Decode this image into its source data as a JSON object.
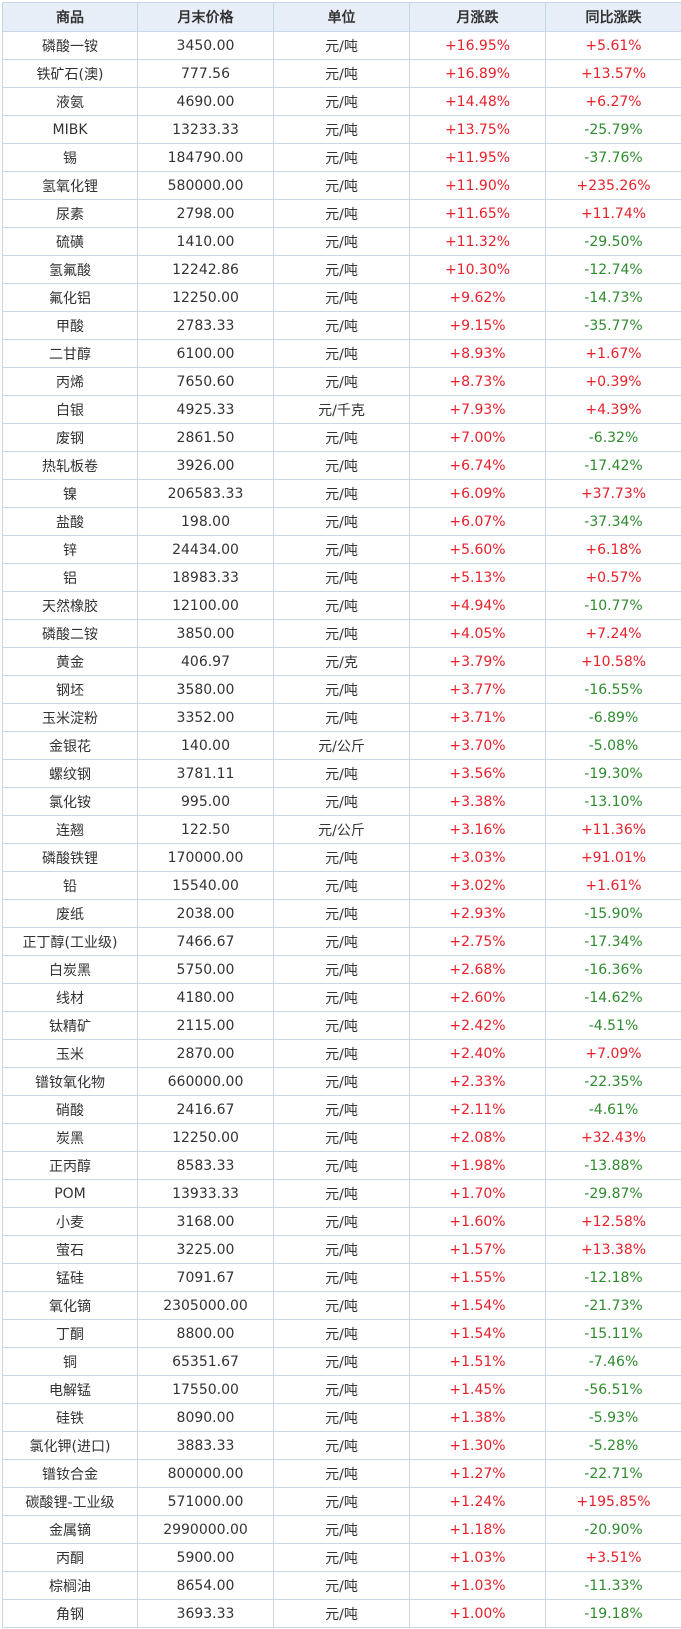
{
  "table": {
    "headers": [
      "商品",
      "月末价格",
      "单位",
      "月涨跌",
      "同比涨跌"
    ],
    "rows": [
      [
        "磷酸一铵",
        "3450.00",
        "元/吨",
        "+16.95%",
        "+5.61%"
      ],
      [
        "铁矿石(澳)",
        "777.56",
        "元/吨",
        "+16.89%",
        "+13.57%"
      ],
      [
        "液氨",
        "4690.00",
        "元/吨",
        "+14.48%",
        "+6.27%"
      ],
      [
        "MIBK",
        "13233.33",
        "元/吨",
        "+13.75%",
        "-25.79%"
      ],
      [
        "锡",
        "184790.00",
        "元/吨",
        "+11.95%",
        "-37.76%"
      ],
      [
        "氢氧化锂",
        "580000.00",
        "元/吨",
        "+11.90%",
        "+235.26%"
      ],
      [
        "尿素",
        "2798.00",
        "元/吨",
        "+11.65%",
        "+11.74%"
      ],
      [
        "硫磺",
        "1410.00",
        "元/吨",
        "+11.32%",
        "-29.50%"
      ],
      [
        "氢氟酸",
        "12242.86",
        "元/吨",
        "+10.30%",
        "-12.74%"
      ],
      [
        "氟化铝",
        "12250.00",
        "元/吨",
        "+9.62%",
        "-14.73%"
      ],
      [
        "甲酸",
        "2783.33",
        "元/吨",
        "+9.15%",
        "-35.77%"
      ],
      [
        "二甘醇",
        "6100.00",
        "元/吨",
        "+8.93%",
        "+1.67%"
      ],
      [
        "丙烯",
        "7650.60",
        "元/吨",
        "+8.73%",
        "+0.39%"
      ],
      [
        "白银",
        "4925.33",
        "元/千克",
        "+7.93%",
        "+4.39%"
      ],
      [
        "废钢",
        "2861.50",
        "元/吨",
        "+7.00%",
        "-6.32%"
      ],
      [
        "热轧板卷",
        "3926.00",
        "元/吨",
        "+6.74%",
        "-17.42%"
      ],
      [
        "镍",
        "206583.33",
        "元/吨",
        "+6.09%",
        "+37.73%"
      ],
      [
        "盐酸",
        "198.00",
        "元/吨",
        "+6.07%",
        "-37.34%"
      ],
      [
        "锌",
        "24434.00",
        "元/吨",
        "+5.60%",
        "+6.18%"
      ],
      [
        "铝",
        "18983.33",
        "元/吨",
        "+5.13%",
        "+0.57%"
      ],
      [
        "天然橡胶",
        "12100.00",
        "元/吨",
        "+4.94%",
        "-10.77%"
      ],
      [
        "磷酸二铵",
        "3850.00",
        "元/吨",
        "+4.05%",
        "+7.24%"
      ],
      [
        "黄金",
        "406.97",
        "元/克",
        "+3.79%",
        "+10.58%"
      ],
      [
        "钢坯",
        "3580.00",
        "元/吨",
        "+3.77%",
        "-16.55%"
      ],
      [
        "玉米淀粉",
        "3352.00",
        "元/吨",
        "+3.71%",
        "-6.89%"
      ],
      [
        "金银花",
        "140.00",
        "元/公斤",
        "+3.70%",
        "-5.08%"
      ],
      [
        "螺纹钢",
        "3781.11",
        "元/吨",
        "+3.56%",
        "-19.30%"
      ],
      [
        "氯化铵",
        "995.00",
        "元/吨",
        "+3.38%",
        "-13.10%"
      ],
      [
        "连翘",
        "122.50",
        "元/公斤",
        "+3.16%",
        "+11.36%"
      ],
      [
        "磷酸铁锂",
        "170000.00",
        "元/吨",
        "+3.03%",
        "+91.01%"
      ],
      [
        "铅",
        "15540.00",
        "元/吨",
        "+3.02%",
        "+1.61%"
      ],
      [
        "废纸",
        "2038.00",
        "元/吨",
        "+2.93%",
        "-15.90%"
      ],
      [
        "正丁醇(工业级)",
        "7466.67",
        "元/吨",
        "+2.75%",
        "-17.34%"
      ],
      [
        "白炭黑",
        "5750.00",
        "元/吨",
        "+2.68%",
        "-16.36%"
      ],
      [
        "线材",
        "4180.00",
        "元/吨",
        "+2.60%",
        "-14.62%"
      ],
      [
        "钛精矿",
        "2115.00",
        "元/吨",
        "+2.42%",
        "-4.51%"
      ],
      [
        "玉米",
        "2870.00",
        "元/吨",
        "+2.40%",
        "+7.09%"
      ],
      [
        "镨钕氧化物",
        "660000.00",
        "元/吨",
        "+2.33%",
        "-22.35%"
      ],
      [
        "硝酸",
        "2416.67",
        "元/吨",
        "+2.11%",
        "-4.61%"
      ],
      [
        "炭黑",
        "12250.00",
        "元/吨",
        "+2.08%",
        "+32.43%"
      ],
      [
        "正丙醇",
        "8583.33",
        "元/吨",
        "+1.98%",
        "-13.88%"
      ],
      [
        "POM",
        "13933.33",
        "元/吨",
        "+1.70%",
        "-29.87%"
      ],
      [
        "小麦",
        "3168.00",
        "元/吨",
        "+1.60%",
        "+12.58%"
      ],
      [
        "萤石",
        "3225.00",
        "元/吨",
        "+1.57%",
        "+13.38%"
      ],
      [
        "锰硅",
        "7091.67",
        "元/吨",
        "+1.55%",
        "-12.18%"
      ],
      [
        "氧化镝",
        "2305000.00",
        "元/吨",
        "+1.54%",
        "-21.73%"
      ],
      [
        "丁酮",
        "8800.00",
        "元/吨",
        "+1.54%",
        "-15.11%"
      ],
      [
        "铜",
        "65351.67",
        "元/吨",
        "+1.51%",
        "-7.46%"
      ],
      [
        "电解锰",
        "17550.00",
        "元/吨",
        "+1.45%",
        "-56.51%"
      ],
      [
        "硅铁",
        "8090.00",
        "元/吨",
        "+1.38%",
        "-5.93%"
      ],
      [
        "氯化钾(进口)",
        "3883.33",
        "元/吨",
        "+1.30%",
        "-5.28%"
      ],
      [
        "镨钕合金",
        "800000.00",
        "元/吨",
        "+1.27%",
        "-22.71%"
      ],
      [
        "碳酸锂-工业级",
        "571000.00",
        "元/吨",
        "+1.24%",
        "+195.85%"
      ],
      [
        "金属镝",
        "2990000.00",
        "元/吨",
        "+1.18%",
        "-20.90%"
      ],
      [
        "丙酮",
        "5900.00",
        "元/吨",
        "+1.03%",
        "+3.51%"
      ],
      [
        "棕榈油",
        "8654.00",
        "元/吨",
        "+1.03%",
        "-11.33%"
      ],
      [
        "角钢",
        "3693.33",
        "元/吨",
        "+1.00%",
        "-19.18%"
      ]
    ]
  },
  "colors": {
    "rise": "#e8212b",
    "fall": "#2e8b2e",
    "header_bg": "#e8eef7",
    "border": "#c8d6e8",
    "text": "#333333"
  }
}
